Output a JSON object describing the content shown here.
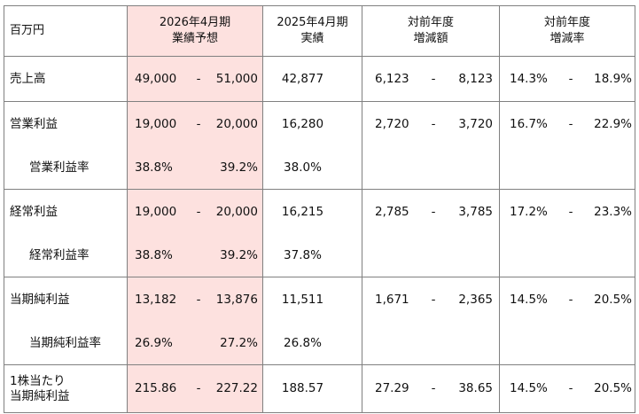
{
  "header": {
    "unit": "百万円",
    "forecast_line1": "2026年4月期",
    "forecast_line2": "業績予想",
    "actual_line1": "2025年4月期",
    "actual_line2": "実績",
    "yoy_amount_line1": "対前年度",
    "yoy_amount_line2": "増減額",
    "yoy_rate_line1": "対前年度",
    "yoy_rate_line2": "増減率"
  },
  "rows": {
    "sales": {
      "label": "売上高",
      "fc_low": "49,000",
      "fc_sep": "-",
      "fc_high": "51,000",
      "actual": "42,877",
      "yoy_low": "6,123",
      "yoy_sep": "-",
      "yoy_high": "8,123",
      "rate_low": "14.3%",
      "rate_sep": "-",
      "rate_high": "18.9%"
    },
    "op_income": {
      "label": "営業利益",
      "fc_low": "19,000",
      "fc_sep": "-",
      "fc_high": "20,000",
      "actual": "16,280",
      "yoy_low": "2,720",
      "yoy_sep": "-",
      "yoy_high": "3,720",
      "rate_low": "16.7%",
      "rate_sep": "-",
      "rate_high": "22.9%"
    },
    "op_margin": {
      "label": "営業利益率",
      "fc_low": "38.8%",
      "fc_high": "39.2%",
      "actual": "38.0%"
    },
    "ord_income": {
      "label": "経常利益",
      "fc_low": "19,000",
      "fc_sep": "-",
      "fc_high": "20,000",
      "actual": "16,215",
      "yoy_low": "2,785",
      "yoy_sep": "-",
      "yoy_high": "3,785",
      "rate_low": "17.2%",
      "rate_sep": "-",
      "rate_high": "23.3%"
    },
    "ord_margin": {
      "label": "経常利益率",
      "fc_low": "38.8%",
      "fc_high": "39.2%",
      "actual": "37.8%"
    },
    "net_income": {
      "label": "当期純利益",
      "fc_low": "13,182",
      "fc_sep": "-",
      "fc_high": "13,876",
      "actual": "11,511",
      "yoy_low": "1,671",
      "yoy_sep": "-",
      "yoy_high": "2,365",
      "rate_low": "14.5%",
      "rate_sep": "-",
      "rate_high": "20.5%"
    },
    "net_margin": {
      "label": "当期純利益率",
      "fc_low": "26.9%",
      "fc_high": "27.2%",
      "actual": "26.8%"
    },
    "eps": {
      "label_line1": "1株当たり",
      "label_line2": "当期純利益",
      "fc_low": "215.86",
      "fc_sep": "-",
      "fc_high": "227.22",
      "actual": "188.57",
      "yoy_low": "27.29",
      "yoy_sep": "-",
      "yoy_high": "38.65",
      "rate_low": "14.5%",
      "rate_sep": "-",
      "rate_high": "20.5%"
    }
  },
  "colors": {
    "forecast_bg": "#fde1df",
    "rule": "#808080"
  }
}
